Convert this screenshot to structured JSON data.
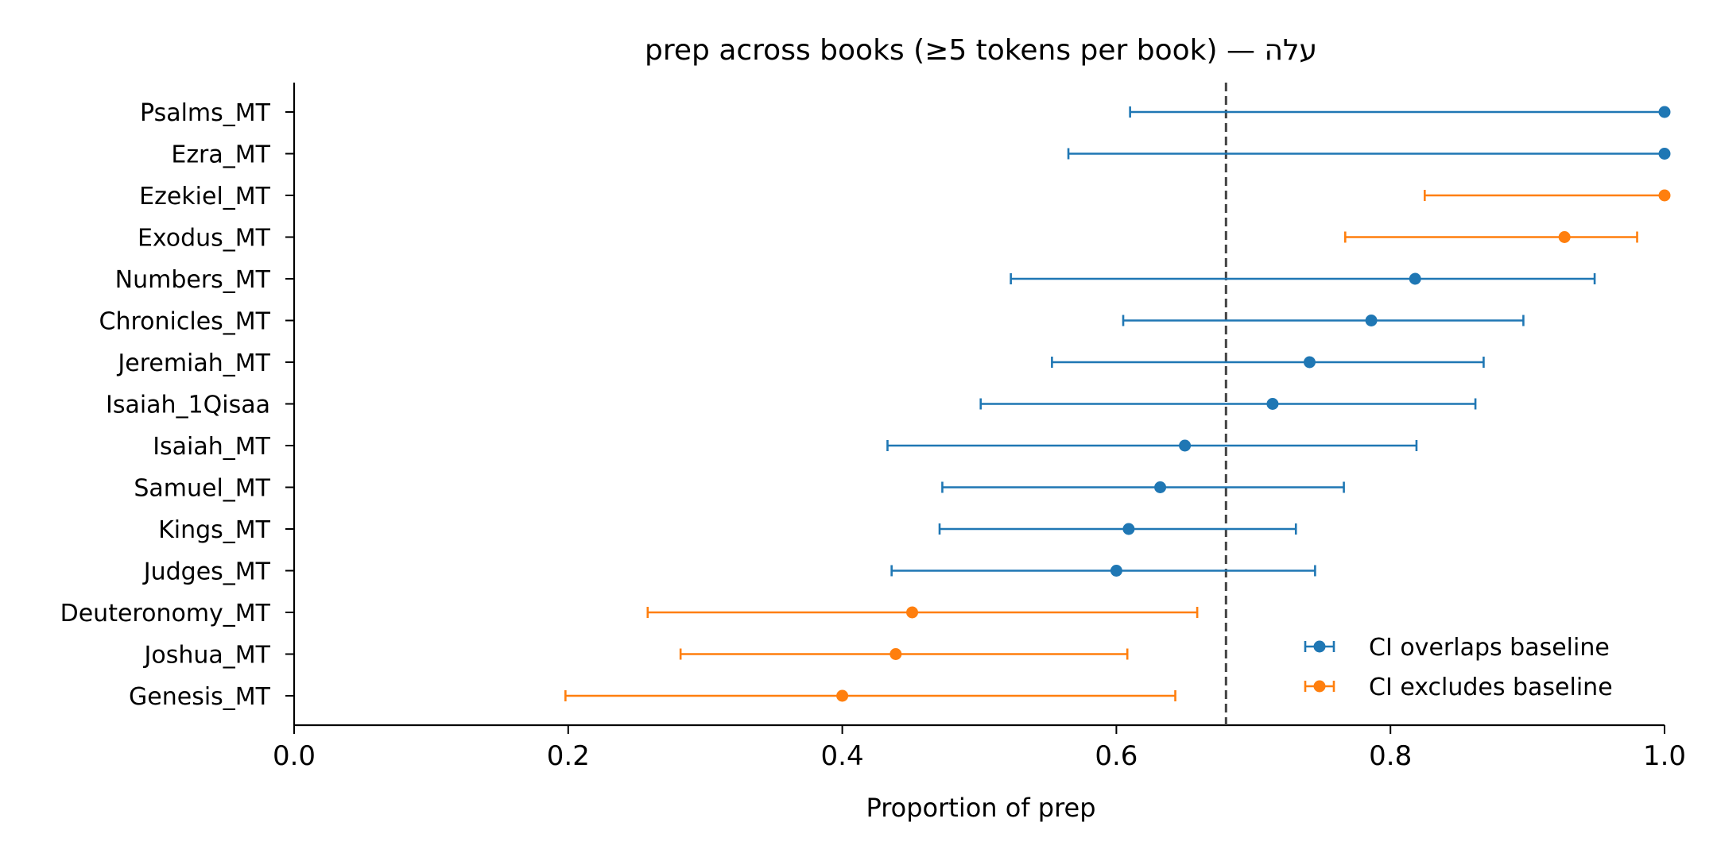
{
  "chart_data": {
    "type": "scatter",
    "subtype": "forest-plot-with-confidence-intervals",
    "title": "עלה — prep across books (≥5 tokens per book)",
    "xlabel": "Proportion of prep",
    "ylabel": "",
    "xlim": [
      0.0,
      1.0
    ],
    "xticks": [
      "0.0",
      "0.2",
      "0.4",
      "0.6",
      "0.8",
      "1.0"
    ],
    "baseline": 0.68,
    "baseline_style": "dashed",
    "grid": false,
    "legend_position": "lower-right",
    "colors": {
      "overlaps": "#1f77b4",
      "excludes": "#ff7f0e",
      "baseline": "#444444"
    },
    "legend": [
      {
        "key": "overlaps",
        "label": "CI overlaps baseline"
      },
      {
        "key": "excludes",
        "label": "CI excludes baseline"
      }
    ],
    "rows": [
      {
        "label": "Psalms_MT",
        "value": 1.0,
        "ci_low": 0.61,
        "ci_high": 1.0,
        "group": "overlaps"
      },
      {
        "label": "Ezra_MT",
        "value": 1.0,
        "ci_low": 0.565,
        "ci_high": 1.0,
        "group": "overlaps"
      },
      {
        "label": "Ezekiel_MT",
        "value": 1.0,
        "ci_low": 0.825,
        "ci_high": 1.0,
        "group": "excludes"
      },
      {
        "label": "Exodus_MT",
        "value": 0.927,
        "ci_low": 0.767,
        "ci_high": 0.98,
        "group": "excludes"
      },
      {
        "label": "Numbers_MT",
        "value": 0.818,
        "ci_low": 0.523,
        "ci_high": 0.949,
        "group": "overlaps"
      },
      {
        "label": "Chronicles_MT",
        "value": 0.786,
        "ci_low": 0.605,
        "ci_high": 0.897,
        "group": "overlaps"
      },
      {
        "label": "Jeremiah_MT",
        "value": 0.741,
        "ci_low": 0.553,
        "ci_high": 0.868,
        "group": "overlaps"
      },
      {
        "label": "Isaiah_1Qisaa",
        "value": 0.714,
        "ci_low": 0.501,
        "ci_high": 0.862,
        "group": "overlaps"
      },
      {
        "label": "Isaiah_MT",
        "value": 0.65,
        "ci_low": 0.433,
        "ci_high": 0.819,
        "group": "overlaps"
      },
      {
        "label": "Samuel_MT",
        "value": 0.632,
        "ci_low": 0.473,
        "ci_high": 0.766,
        "group": "overlaps"
      },
      {
        "label": "Kings_MT",
        "value": 0.609,
        "ci_low": 0.471,
        "ci_high": 0.731,
        "group": "overlaps"
      },
      {
        "label": "Judges_MT",
        "value": 0.6,
        "ci_low": 0.436,
        "ci_high": 0.745,
        "group": "overlaps"
      },
      {
        "label": "Deuteronomy_MT",
        "value": 0.451,
        "ci_low": 0.258,
        "ci_high": 0.659,
        "group": "excludes"
      },
      {
        "label": "Joshua_MT",
        "value": 0.439,
        "ci_low": 0.282,
        "ci_high": 0.608,
        "group": "excludes"
      },
      {
        "label": "Genesis_MT",
        "value": 0.4,
        "ci_low": 0.198,
        "ci_high": 0.643,
        "group": "excludes"
      }
    ]
  }
}
